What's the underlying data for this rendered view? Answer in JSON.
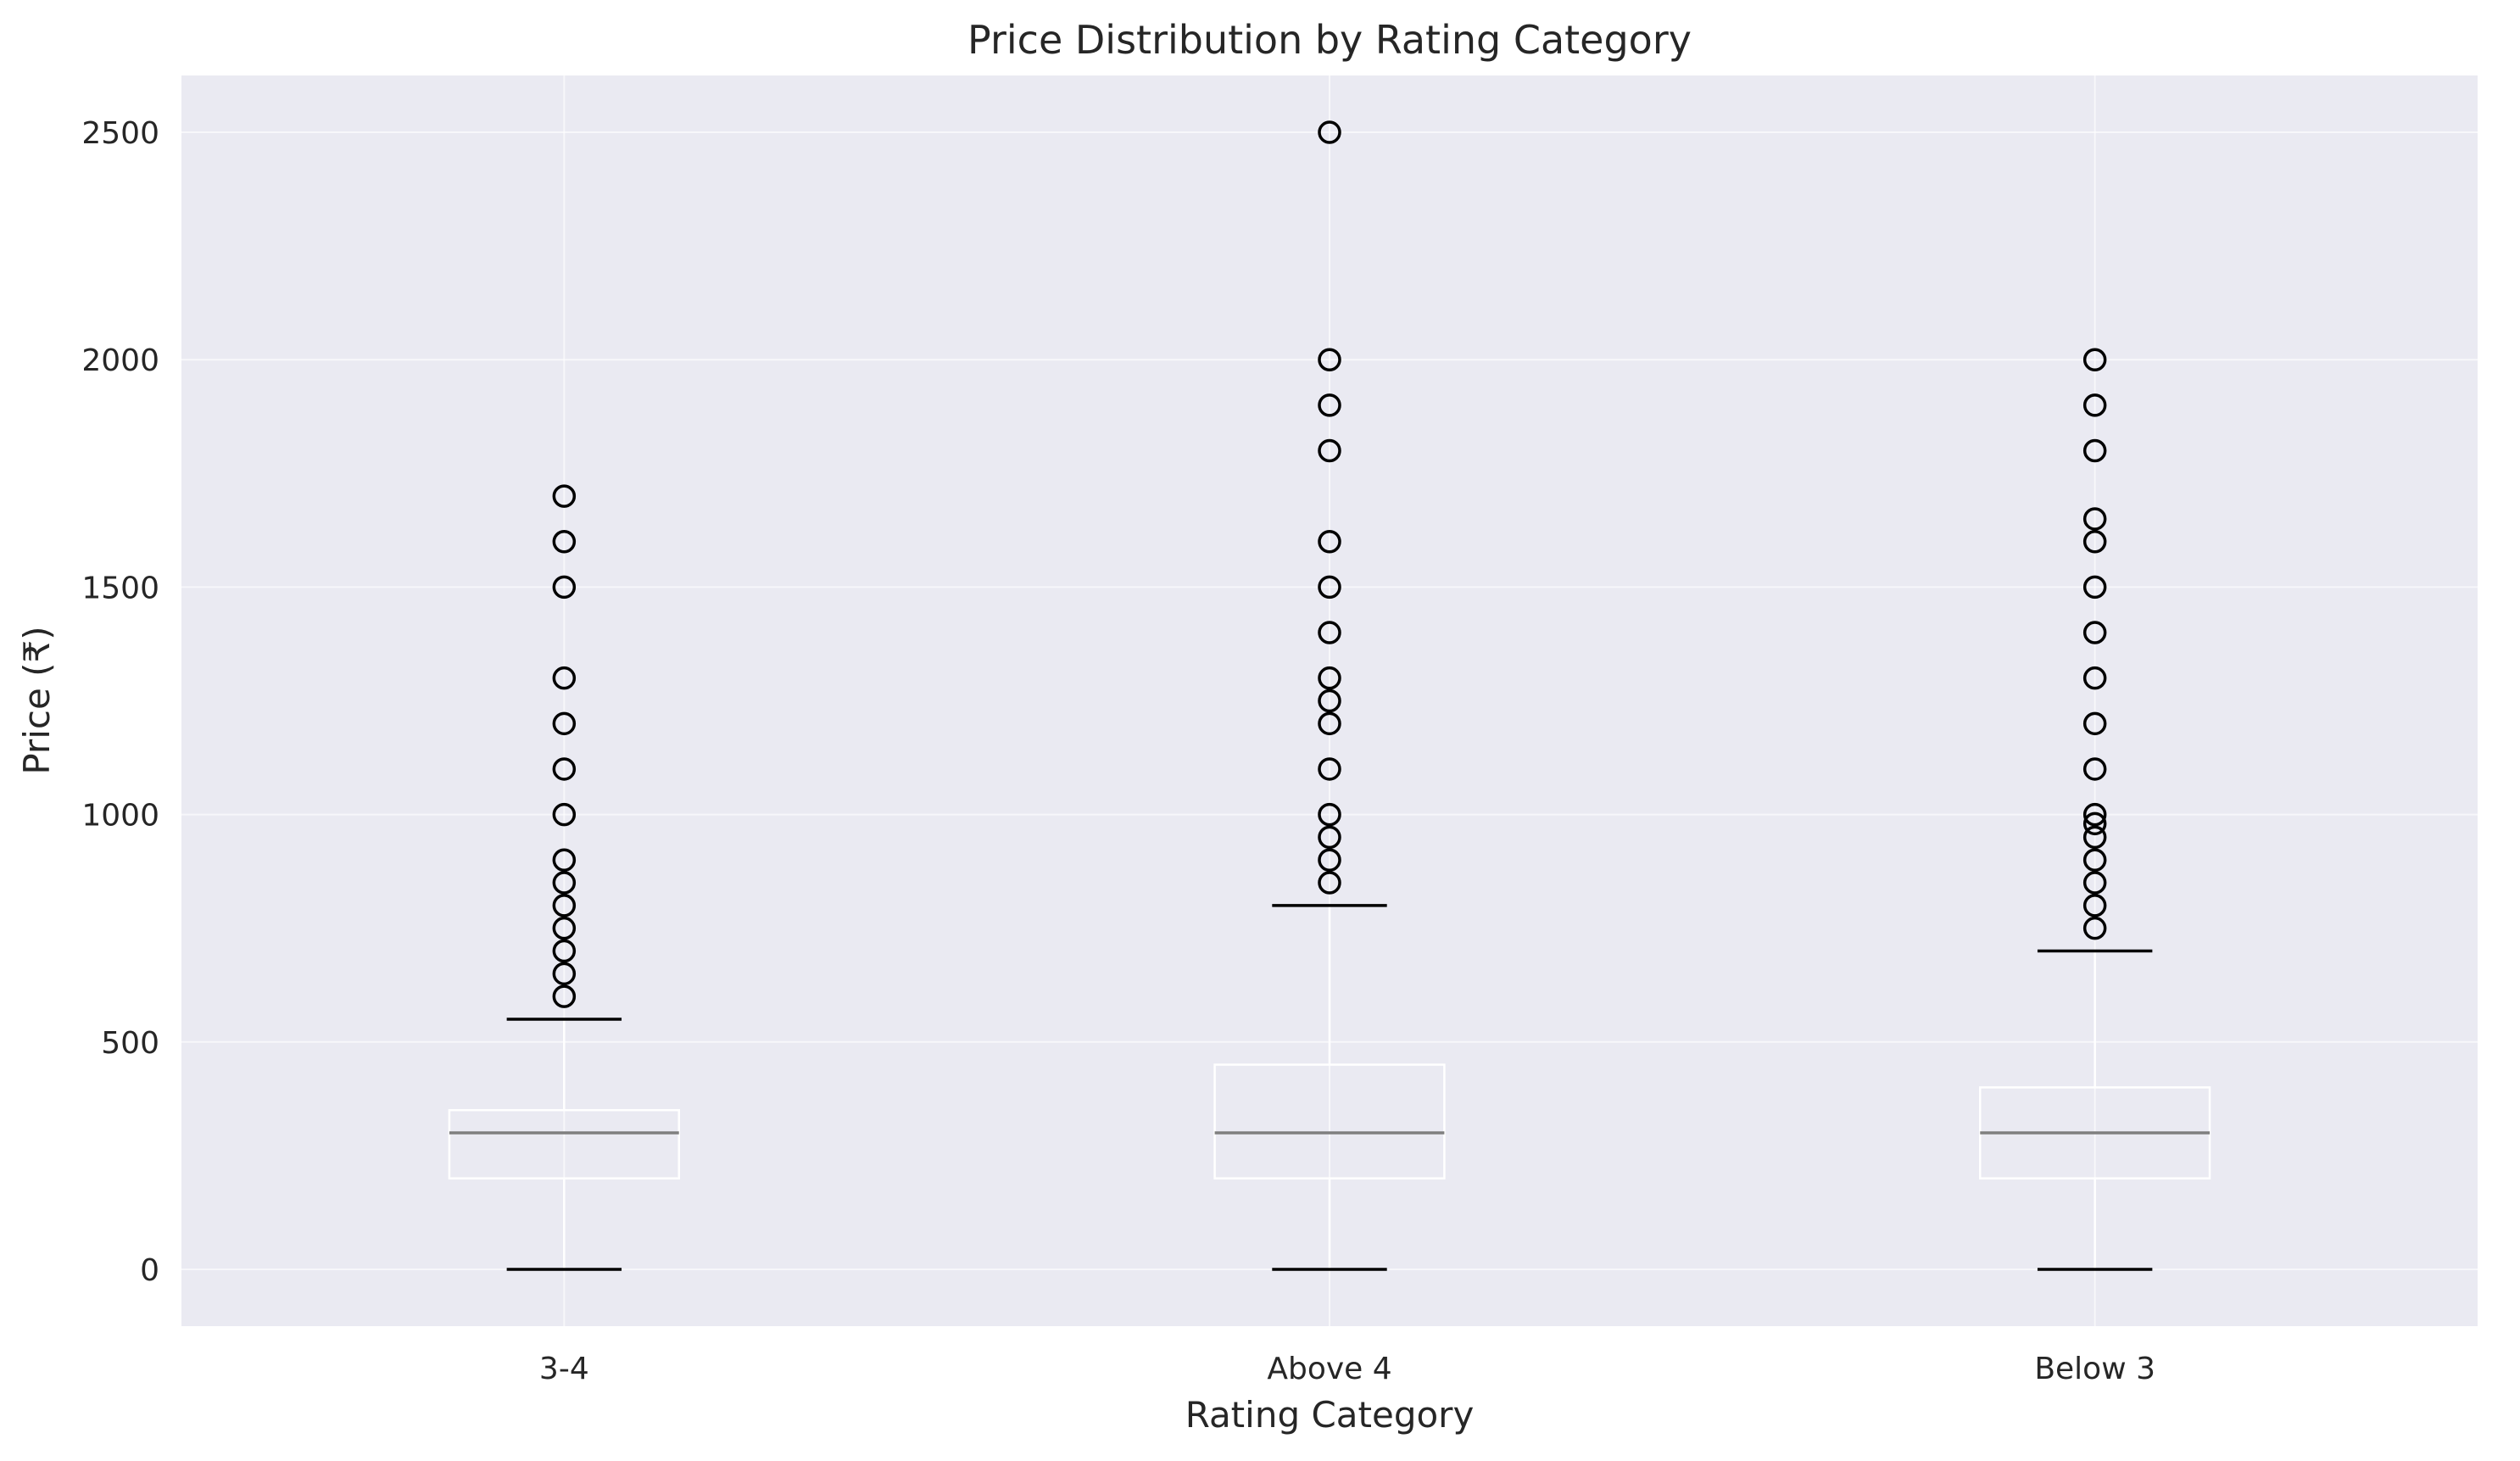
{
  "chart_data": {
    "type": "box",
    "title": "Price Distribution by Rating Category",
    "xlabel": "Rating Category",
    "ylabel": "Price (₹)",
    "ylim": [
      -125,
      2625
    ],
    "yticks": [
      0,
      500,
      1000,
      1500,
      2000,
      2500
    ],
    "grid": true,
    "categories": [
      "3-4",
      "Above 4",
      "Below 3"
    ],
    "boxes": [
      {
        "category": "3-4",
        "whisker_low": 0,
        "q1": 200,
        "median": 300,
        "q3": 350,
        "whisker_high": 550,
        "outliers": [
          600,
          650,
          700,
          750,
          800,
          850,
          900,
          1000,
          1100,
          1200,
          1300,
          1500,
          1600,
          1700
        ]
      },
      {
        "category": "Above 4",
        "whisker_low": 0,
        "q1": 200,
        "median": 300,
        "q3": 450,
        "whisker_high": 800,
        "outliers": [
          850,
          900,
          950,
          1000,
          1100,
          1200,
          1250,
          1300,
          1400,
          1500,
          1600,
          1800,
          1900,
          2000,
          2500
        ]
      },
      {
        "category": "Below 3",
        "whisker_low": 0,
        "q1": 200,
        "median": 300,
        "q3": 400,
        "whisker_high": 700,
        "outliers": [
          750,
          800,
          850,
          900,
          950,
          980,
          1000,
          1100,
          1200,
          1300,
          1400,
          1500,
          1600,
          1650,
          1800,
          1900,
          2000
        ]
      }
    ],
    "colors": {
      "plot_background": "#eaeaf2",
      "grid": "#ffffff",
      "box": "#ffffff",
      "median": "#7f7f7f",
      "whisker_cap": "#000000",
      "outlier": "#000000"
    }
  }
}
